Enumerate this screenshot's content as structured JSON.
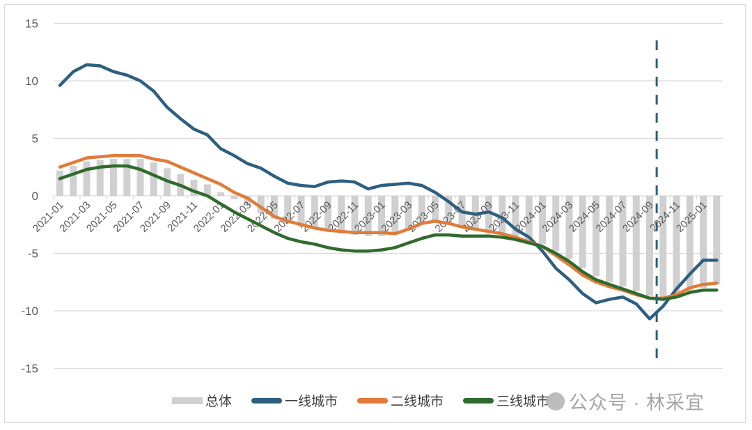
{
  "chart_data": {
    "type": "bar+line",
    "title": "",
    "xlabel": "",
    "ylabel": "",
    "ylim": [
      -15,
      15
    ],
    "yticks": [
      15,
      10,
      5,
      0,
      -5,
      -10,
      -15
    ],
    "grid": true,
    "legend_position": "bottom",
    "x": [
      "2021-01",
      "2021-02",
      "2021-03",
      "2021-04",
      "2021-05",
      "2021-06",
      "2021-07",
      "2021-08",
      "2021-09",
      "2021-10",
      "2021-11",
      "2021-12",
      "2022-01",
      "2022-02",
      "2022-03",
      "2022-04",
      "2022-05",
      "2022-06",
      "2022-07",
      "2022-08",
      "2022-09",
      "2022-10",
      "2022-11",
      "2022-12",
      "2023-01",
      "2023-02",
      "2023-03",
      "2023-04",
      "2023-05",
      "2023-06",
      "2023-07",
      "2023-08",
      "2023-09",
      "2023-10",
      "2023-11",
      "2023-12",
      "2024-01",
      "2024-02",
      "2024-03",
      "2024-04",
      "2024-05",
      "2024-06",
      "2024-07",
      "2024-08",
      "2024-09",
      "2024-10",
      "2024-11",
      "2024-12",
      "2025-01",
      "2025-02"
    ],
    "x_tick_labels": [
      "2021-01",
      "2021-03",
      "2021-05",
      "2021-07",
      "2021-09",
      "2021-11",
      "2022-01",
      "2022-03",
      "2022-05",
      "2022-07",
      "2022-09",
      "2022-11",
      "2023-01",
      "2023-03",
      "2023-05",
      "2023-07",
      "2023-09",
      "2023-11",
      "2024-01",
      "2024-03",
      "2024-05",
      "2024-07",
      "2024-09",
      "2024-11",
      "2025-01"
    ],
    "vline": {
      "x": "2024-10",
      "style": "dashed",
      "color": "#2e5f80"
    },
    "series": [
      {
        "name": "总体",
        "kind": "bar",
        "color": "#d0d0d0",
        "values": [
          2.2,
          2.6,
          3.0,
          3.1,
          3.2,
          3.2,
          3.2,
          2.9,
          2.4,
          1.9,
          1.4,
          1.0,
          0.3,
          -0.3,
          -0.8,
          -1.5,
          -2.0,
          -2.4,
          -2.7,
          -2.9,
          -3.1,
          -3.3,
          -3.4,
          -3.5,
          -3.5,
          -3.3,
          -2.9,
          -2.5,
          -2.2,
          -2.4,
          -2.7,
          -2.9,
          -3.1,
          -3.3,
          -3.5,
          -3.8,
          -4.2,
          -4.8,
          -5.5,
          -6.3,
          -7.0,
          -7.5,
          -7.9,
          -8.3,
          -8.7,
          -9.0,
          -8.9,
          -8.5,
          -8.0,
          -7.7
        ]
      },
      {
        "name": "一线城市",
        "kind": "line",
        "color": "#2e5f80",
        "values": [
          9.6,
          10.8,
          11.4,
          11.3,
          10.8,
          10.5,
          10.0,
          9.1,
          7.7,
          6.7,
          5.8,
          5.3,
          4.1,
          3.5,
          2.8,
          2.4,
          1.7,
          1.1,
          0.9,
          0.8,
          1.2,
          1.3,
          1.2,
          0.6,
          0.9,
          1.0,
          1.1,
          0.9,
          0.3,
          -0.5,
          -1.4,
          -1.6,
          -1.4,
          -1.9,
          -2.9,
          -3.6,
          -4.8,
          -6.3,
          -7.3,
          -8.5,
          -9.3,
          -9.0,
          -8.8,
          -9.4,
          -10.7,
          -9.6,
          -8.1,
          -6.8,
          -5.6,
          -5.6
        ]
      },
      {
        "name": "二线城市",
        "kind": "line",
        "color": "#e07b39",
        "values": [
          2.5,
          2.9,
          3.3,
          3.4,
          3.5,
          3.5,
          3.5,
          3.2,
          3.0,
          2.5,
          2.0,
          1.5,
          1.0,
          0.3,
          -0.2,
          -1.0,
          -1.8,
          -2.2,
          -2.5,
          -2.8,
          -3.0,
          -3.1,
          -3.2,
          -3.2,
          -3.2,
          -3.3,
          -2.9,
          -2.4,
          -2.2,
          -2.4,
          -2.7,
          -2.9,
          -3.1,
          -3.3,
          -3.6,
          -4.0,
          -4.4,
          -5.2,
          -6.0,
          -6.9,
          -7.5,
          -7.9,
          -8.2,
          -8.6,
          -8.9,
          -8.9,
          -8.6,
          -8.0,
          -7.7,
          -7.6
        ]
      },
      {
        "name": "三线城市",
        "kind": "line",
        "color": "#2f6b2c",
        "values": [
          1.5,
          1.9,
          2.3,
          2.5,
          2.6,
          2.6,
          2.3,
          1.8,
          1.3,
          0.9,
          0.4,
          0.0,
          -0.7,
          -1.4,
          -2.0,
          -2.6,
          -3.2,
          -3.7,
          -4.0,
          -4.2,
          -4.5,
          -4.7,
          -4.8,
          -4.8,
          -4.7,
          -4.5,
          -4.1,
          -3.7,
          -3.4,
          -3.4,
          -3.5,
          -3.5,
          -3.5,
          -3.6,
          -3.8,
          -4.1,
          -4.4,
          -5.0,
          -5.7,
          -6.6,
          -7.3,
          -7.7,
          -8.1,
          -8.5,
          -8.9,
          -9.0,
          -8.8,
          -8.4,
          -8.2,
          -8.2
        ]
      }
    ]
  },
  "legend": {
    "items": [
      {
        "label": "总体",
        "color": "#d0d0d0",
        "kind": "bar"
      },
      {
        "label": "一线城市",
        "color": "#2e5f80",
        "kind": "line"
      },
      {
        "label": "二线城市",
        "color": "#e07b39",
        "kind": "line"
      },
      {
        "label": "三线城市",
        "color": "#2f6b2c",
        "kind": "line"
      }
    ]
  },
  "watermark": {
    "text": "公众号 · 林采宜"
  },
  "colors": {
    "grid": "#d9d9d9",
    "axis_text": "#595959",
    "frame": "#d9d9d9"
  }
}
